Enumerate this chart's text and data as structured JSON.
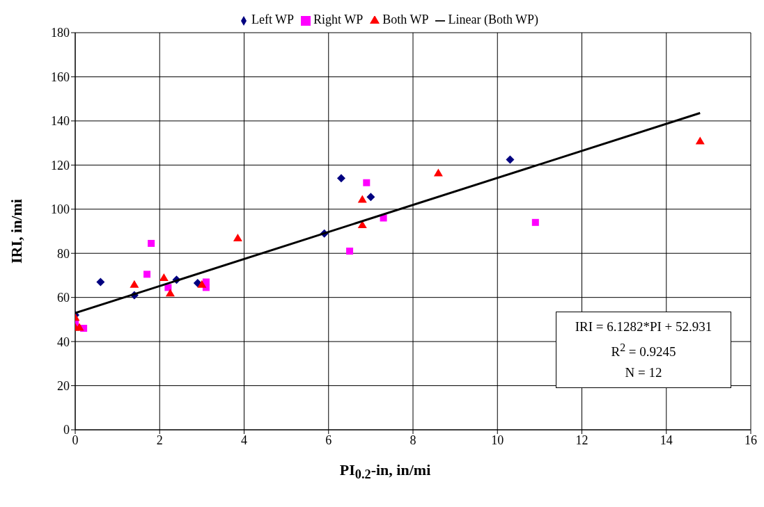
{
  "chart_data": {
    "type": "scatter",
    "xlabel": "PI$_{0.2}$-in, in/mi",
    "ylabel": "IRI, in/mi",
    "xlim": [
      0,
      16
    ],
    "xticks": [
      0,
      2,
      4,
      6,
      8,
      10,
      12,
      14,
      16
    ],
    "ylim": [
      0,
      180
    ],
    "yticks": [
      0,
      20,
      40,
      60,
      80,
      100,
      120,
      140,
      160,
      180
    ],
    "grid": true,
    "legend": "top",
    "annotations": [
      "IRI = 6.1282*PI + 52.931",
      "R$^{2}$ = 0.9245",
      "N = 12"
    ],
    "series": [
      {
        "name": "Left WP",
        "color": "#000080",
        "marker": "diamond",
        "x": [
          0,
          0.6,
          1.4,
          2.4,
          2.9,
          5.9,
          6.3,
          7.0,
          10.3
        ],
        "values": [
          52,
          67,
          61,
          68,
          66.5,
          89,
          114,
          105.5,
          122.5
        ]
      },
      {
        "name": "Right WP",
        "color": "#ff00ff",
        "marker": "square",
        "x": [
          0,
          0.2,
          1.7,
          1.8,
          2.2,
          3.1,
          3.1,
          6.5,
          6.9,
          7.3,
          10.9
        ],
        "values": [
          48,
          46,
          70.5,
          84.5,
          64.5,
          67,
          64.5,
          81,
          112,
          96,
          94
        ]
      },
      {
        "name": "Both WP",
        "color": "#ff0000",
        "marker": "triangle",
        "x": [
          0,
          0,
          0.1,
          1.4,
          2.1,
          2.25,
          3.0,
          3.85,
          6.8,
          6.8,
          8.6,
          14.8
        ],
        "values": [
          51,
          46.5,
          46.5,
          66,
          69,
          62,
          66,
          87,
          93,
          104.5,
          116.5,
          131
        ]
      },
      {
        "name": "Linear (Both WP)",
        "type": "line",
        "color": "#000000",
        "marker": "none",
        "line_style": "solid",
        "x": [
          0,
          14.8
        ],
        "values": [
          52.9,
          143.6
        ]
      }
    ]
  }
}
